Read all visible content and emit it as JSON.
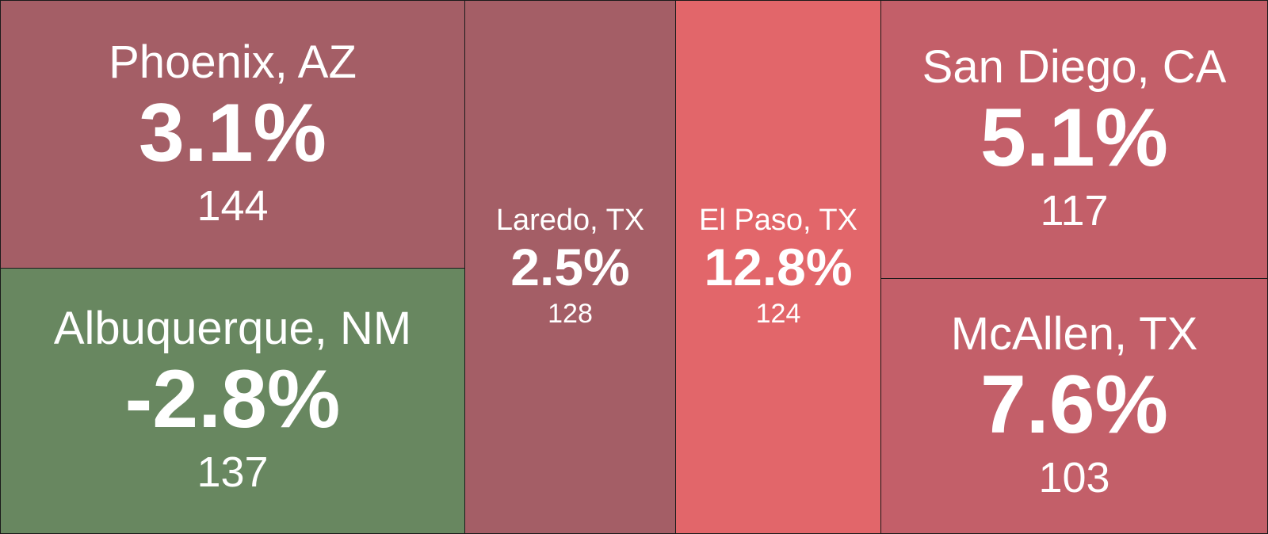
{
  "chart_data": {
    "type": "treemap",
    "tiles": [
      {
        "label": "Phoenix, AZ",
        "change": "3.1%",
        "count": "144",
        "color": "#a45e66"
      },
      {
        "label": "Albuquerque, NM",
        "change": "-2.8%",
        "count": "137",
        "color": "#688760"
      },
      {
        "label": "Laredo, TX",
        "change": "2.5%",
        "count": "128",
        "color": "#a45e66"
      },
      {
        "label": "El Paso, TX",
        "change": "12.8%",
        "count": "124",
        "color": "#e2666a"
      },
      {
        "label": "San Diego, CA",
        "change": "5.1%",
        "count": "117",
        "color": "#c35f69"
      },
      {
        "label": "McAllen, TX",
        "change": "7.6%",
        "count": "103",
        "color": "#c35f69"
      }
    ]
  }
}
